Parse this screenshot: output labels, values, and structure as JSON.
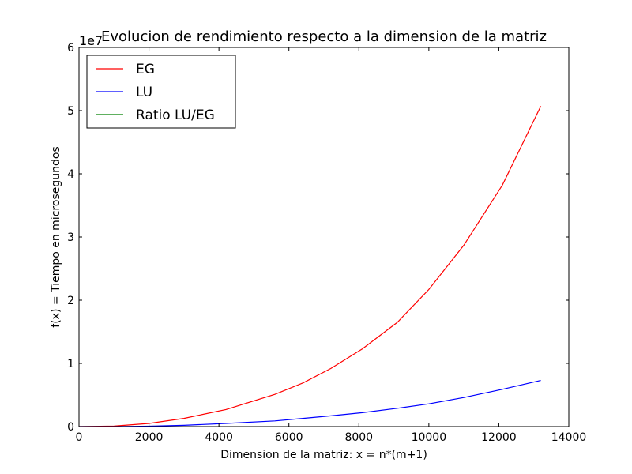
{
  "chart_data": {
    "type": "line",
    "title": "Evolucion de rendimiento respecto a la dimension de la matriz",
    "xlabel": "Dimension de la matriz: x = n*(m+1)",
    "ylabel": "f(x) = Tiempo en microsegundos",
    "y_offset_label": "1e7",
    "xlim": [
      0,
      14000
    ],
    "ylim": [
      0,
      6
    ],
    "x_ticks": [
      0,
      2000,
      4000,
      6000,
      8000,
      10000,
      12000,
      14000
    ],
    "y_ticks": [
      0,
      1,
      2,
      3,
      4,
      5,
      6
    ],
    "grid": false,
    "legend_position": "top-left",
    "series": [
      {
        "name": "EG",
        "color": "#ff0000",
        "x": [
          0,
          1000,
          2000,
          3000,
          4200,
          5600,
          6400,
          7200,
          8100,
          9100,
          10000,
          11000,
          12100,
          13200
        ],
        "y": [
          0,
          0.008,
          0.05,
          0.13,
          0.27,
          0.51,
          0.69,
          0.92,
          1.23,
          1.65,
          2.17,
          2.87,
          3.82,
          5.07
        ]
      },
      {
        "name": "LU",
        "color": "#0000ff",
        "x": [
          0,
          1000,
          2000,
          3000,
          4200,
          5600,
          6400,
          7200,
          8100,
          9100,
          10000,
          11000,
          12100,
          13200
        ],
        "y": [
          0,
          0.001,
          0.007,
          0.02,
          0.05,
          0.09,
          0.13,
          0.17,
          0.22,
          0.29,
          0.36,
          0.46,
          0.59,
          0.73
        ]
      },
      {
        "name": "Ratio LU/EG",
        "color": "#008000",
        "x": [],
        "y": []
      }
    ]
  }
}
